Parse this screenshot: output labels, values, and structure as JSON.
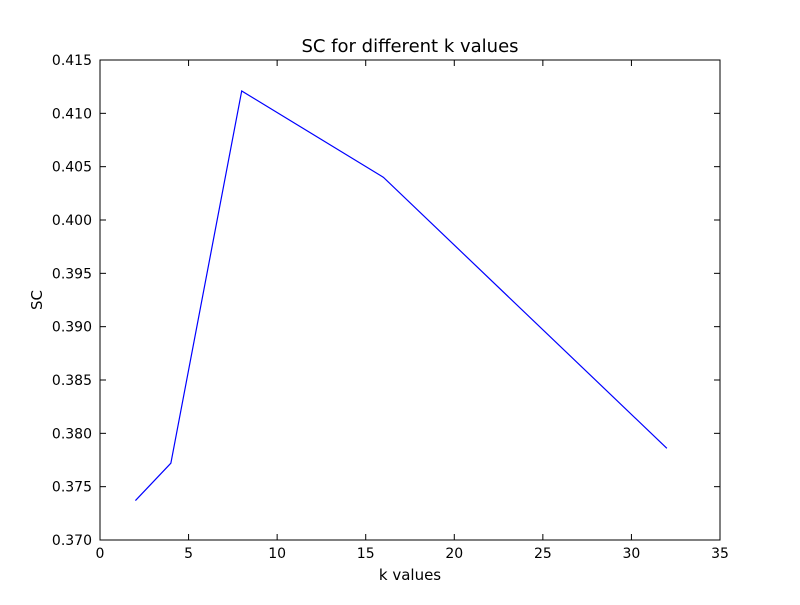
{
  "chart_data": {
    "type": "line",
    "title": "SC for different k values",
    "xlabel": "k values",
    "ylabel": "SC",
    "xlim": [
      0,
      35
    ],
    "ylim": [
      0.37,
      0.415
    ],
    "xticks": [
      0,
      5,
      10,
      15,
      20,
      25,
      30,
      35
    ],
    "xtick_labels": [
      "0",
      "5",
      "10",
      "15",
      "20",
      "25",
      "30",
      "35"
    ],
    "yticks": [
      0.37,
      0.375,
      0.38,
      0.385,
      0.39,
      0.395,
      0.4,
      0.405,
      0.41,
      0.415
    ],
    "ytick_labels": [
      "0.370",
      "0.375",
      "0.380",
      "0.385",
      "0.390",
      "0.395",
      "0.400",
      "0.405",
      "0.410",
      "0.415"
    ],
    "grid": false,
    "series": [
      {
        "color": "#0000ff",
        "x": [
          2,
          4,
          8,
          16,
          32
        ],
        "y": [
          0.3737,
          0.3772,
          0.4121,
          0.404,
          0.3786
        ]
      }
    ]
  }
}
